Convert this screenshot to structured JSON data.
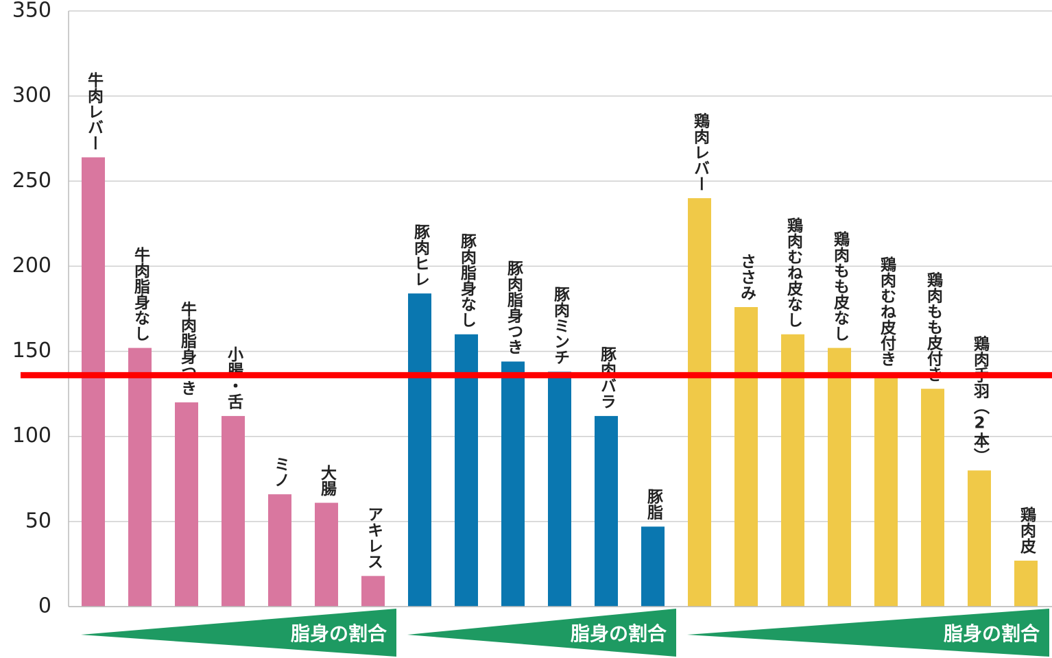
{
  "chart_data": {
    "type": "bar",
    "groups": [
      {
        "color": "#d9779f",
        "categories": [
          "牛肉レバー",
          "牛肉脂身なし",
          "牛肉脂身つき",
          "小腸・舌",
          "ミノ",
          "大腸",
          "アキレス"
        ],
        "values": [
          264,
          152,
          120,
          112,
          66,
          61,
          18
        ],
        "annotation": "脂身の割合"
      },
      {
        "color": "#0a77b0",
        "categories": [
          "豚肉ヒレ",
          "豚肉脂身なし",
          "豚肉脂身つき",
          "豚肉ミンチ",
          "豚肉バラ",
          "豚脂"
        ],
        "values": [
          184,
          160,
          144,
          138,
          112,
          47
        ],
        "annotation": "脂身の割合"
      },
      {
        "color": "#f0c948",
        "categories": [
          "鶏肉レバー",
          "ささみ",
          "鶏肉むね皮なし",
          "鶏肉もも皮なし",
          "鶏肉むね皮付き",
          "鶏肉もも皮付き",
          "鶏肉手羽（2本）",
          "鶏肉皮"
        ],
        "values": [
          240,
          176,
          160,
          152,
          137,
          128,
          80,
          27
        ],
        "annotation": "脂身の割合"
      }
    ],
    "ylim": [
      0,
      350
    ],
    "yticks": [
      0,
      50,
      100,
      150,
      200,
      250,
      300,
      350
    ],
    "grid": true,
    "reference_line": {
      "value": 136,
      "color": "#ff0000"
    }
  }
}
